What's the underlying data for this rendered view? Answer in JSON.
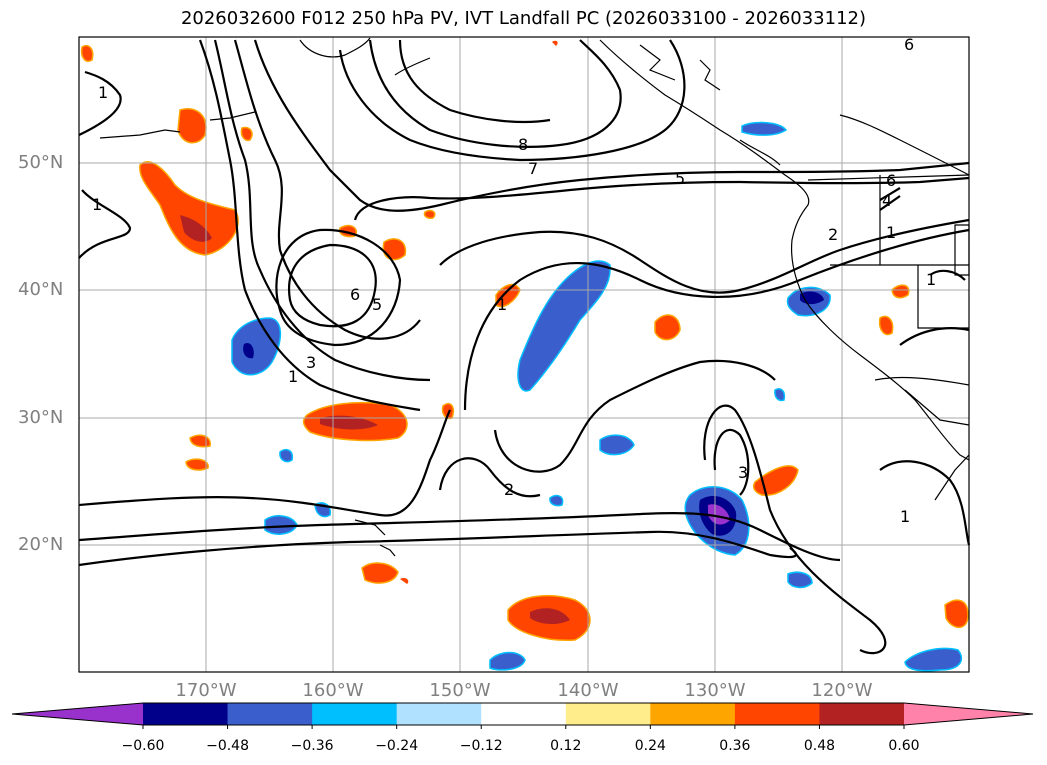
{
  "title": "2026032600 F012 250 hPa PV, IVT Landfall PC (2026033100 - 2026033112)",
  "lat_labels": [
    "50°N",
    "40°N",
    "30°N",
    "20°N"
  ],
  "lon_labels": [
    "170°W",
    "160°W",
    "150°W",
    "140°W",
    "130°W",
    "120°W"
  ],
  "contour_labels": [
    "1",
    "1",
    "8",
    "7",
    "5",
    "6",
    "6",
    "4",
    "2",
    "1",
    "6",
    "5",
    "3",
    "1",
    "1",
    "2",
    "3",
    "1",
    "1"
  ],
  "colorbar": {
    "tick_labels": [
      "−0.60",
      "−0.48",
      "−0.36",
      "−0.24",
      "−0.12",
      "0.12",
      "0.24",
      "0.36",
      "0.48",
      "0.60"
    ],
    "colors": [
      "#9932cc",
      "#00008b",
      "#3a5fcd",
      "#00bfff",
      "#b0e2ff",
      "#ffffff",
      "#ffec8b",
      "#ffa500",
      "#ff4500",
      "#b22222",
      "#ff82ab"
    ]
  },
  "colors": {
    "contour": "#000000",
    "grid": "#a8a8a8",
    "coast": "#000000"
  }
}
